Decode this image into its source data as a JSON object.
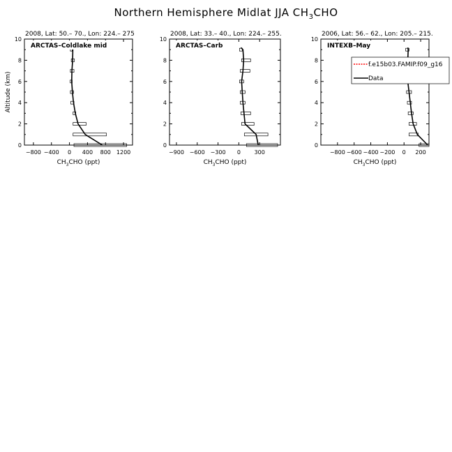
{
  "figure": {
    "title": "Northern Hemisphere Midlat JJA CH",
    "title_sub": "3",
    "title_tail": "CHO"
  },
  "chart_data": [
    {
      "type": "line",
      "header": "2008, Lat:  50.– 70., Lon: 224.– 275",
      "label": "ARCTAS–Coldlake mid",
      "ylabel": "Altitude (km)",
      "xlabel": "CH3CHO (ppt)",
      "xlim": [
        -1000,
        1400
      ],
      "ylim": [
        0,
        10
      ],
      "xticks": [
        -800,
        -400,
        0,
        400,
        800,
        1200
      ],
      "xtick_labels": [
        "−800",
        "−400",
        "0",
        "400",
        "800",
        "1200"
      ],
      "yticks": [
        0,
        2,
        4,
        6,
        8,
        10
      ],
      "series": [
        {
          "name": "Data",
          "color": "#000000",
          "x": [
            730,
            350,
            190,
            130,
            90,
            65,
            50,
            55,
            70,
            75,
            40
          ],
          "y": [
            0,
            1,
            2,
            3,
            4,
            5,
            6,
            7,
            8,
            9,
            9.2
          ]
        }
      ],
      "boxes": [
        {
          "y": 0,
          "x0": 100,
          "x1": 1270
        },
        {
          "y": 1,
          "x0": 80,
          "x1": 820
        },
        {
          "y": 2,
          "x0": 80,
          "x1": 370
        },
        {
          "y": 3,
          "x0": 80,
          "x1": 140
        },
        {
          "y": 4,
          "x0": 30,
          "x1": 100
        },
        {
          "y": 5,
          "x0": 20,
          "x1": 90
        },
        {
          "y": 6,
          "x0": 15,
          "x1": 60
        },
        {
          "y": 7,
          "x0": 20,
          "x1": 100
        },
        {
          "y": 8,
          "x0": 40,
          "x1": 110
        },
        {
          "y": 9,
          "x0": 20,
          "x1": 60
        }
      ]
    },
    {
      "type": "line",
      "header": "2008, Lat:  33.– 40., Lon: 224.– 255.",
      "label": "ARCTAS–Carb",
      "ylabel": "",
      "xlabel": "CH3CHO (ppt)",
      "xlim": [
        -1000,
        600
      ],
      "ylim": [
        0,
        10
      ],
      "xticks": [
        -900,
        -600,
        -300,
        0,
        300
      ],
      "xtick_labels": [
        "−900",
        "−600",
        "−300",
        "0",
        "300"
      ],
      "yticks": [
        0,
        2,
        4,
        6,
        8,
        10
      ],
      "series": [
        {
          "name": "Data",
          "color": "#000000",
          "x": [
            280,
            250,
            90,
            75,
            60,
            50,
            40,
            60,
            70,
            60,
            30
          ],
          "y": [
            0,
            1,
            2,
            3,
            4,
            5,
            6,
            7,
            8,
            9,
            9.2
          ]
        }
      ],
      "boxes": [
        {
          "y": 0,
          "x0": 110,
          "x1": 560
        },
        {
          "y": 1,
          "x0": 80,
          "x1": 420
        },
        {
          "y": 2,
          "x0": 40,
          "x1": 220
        },
        {
          "y": 3,
          "x0": 30,
          "x1": 170
        },
        {
          "y": 4,
          "x0": 20,
          "x1": 90
        },
        {
          "y": 5,
          "x0": 20,
          "x1": 90
        },
        {
          "y": 6,
          "x0": 10,
          "x1": 70
        },
        {
          "y": 7,
          "x0": 20,
          "x1": 160
        },
        {
          "y": 8,
          "x0": 40,
          "x1": 170
        },
        {
          "y": 9,
          "x0": 10,
          "x1": 50
        }
      ]
    },
    {
      "type": "line",
      "header": "2006, Lat: 56.– 62., Lon: 205.– 215.",
      "label": "INTEXB–May",
      "ylabel": "",
      "xlabel": "CH3CHO (ppt)",
      "xlim": [
        -1000,
        300
      ],
      "ylim": [
        0,
        10
      ],
      "xticks": [
        -800,
        -600,
        -400,
        -200,
        0,
        200
      ],
      "xtick_labels": [
        "−800",
        "−600",
        "−400",
        "−200",
        "0",
        "200"
      ],
      "yticks": [
        0,
        2,
        4,
        6,
        8,
        10
      ],
      "series": [
        {
          "name": "Data",
          "color": "#000000",
          "x": [
            285,
            160,
            110,
            90,
            75,
            60,
            45,
            30,
            45,
            50,
            45
          ],
          "y": [
            0,
            1,
            2,
            3,
            4,
            5,
            6,
            7,
            8,
            9,
            9.2
          ]
        },
        {
          "name": "f.e15b03.FAMIP.f09_g16",
          "color": "#ff0000",
          "x": [],
          "y": []
        }
      ],
      "boxes": [
        {
          "y": 0,
          "x0": 180,
          "x1": 300
        },
        {
          "y": 1,
          "x0": 60,
          "x1": 170
        },
        {
          "y": 2,
          "x0": 60,
          "x1": 150
        },
        {
          "y": 3,
          "x0": 50,
          "x1": 110
        },
        {
          "y": 4,
          "x0": 40,
          "x1": 90
        },
        {
          "y": 5,
          "x0": 30,
          "x1": 90
        },
        {
          "y": 6,
          "x0": 20,
          "x1": 70
        },
        {
          "y": 7,
          "x0": 10,
          "x1": 50
        },
        {
          "y": 8,
          "x0": 10,
          "x1": 50
        },
        {
          "y": 9,
          "x0": 20,
          "x1": 60
        }
      ],
      "legend": {
        "placement": "top-right",
        "entries": [
          {
            "label": "f.e15b03.FAMIP.f09_g16",
            "color": "#ff0000",
            "dash": true
          },
          {
            "label": "Data",
            "color": "#000000",
            "dash": false
          }
        ]
      }
    }
  ]
}
